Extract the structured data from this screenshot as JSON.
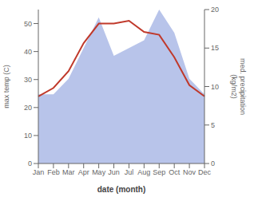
{
  "chart_data": {
    "type": "line",
    "categories": [
      "Jan",
      "Feb",
      "Mar",
      "Apr",
      "May",
      "Jun",
      "Jul",
      "Aug",
      "Sep",
      "Oct",
      "Nov",
      "Dec"
    ],
    "series": [
      {
        "type": "area",
        "axis": "y2",
        "color": "#b0bee8",
        "values": [
          9,
          9,
          11,
          15,
          19,
          14,
          15,
          16,
          20,
          17,
          11,
          9
        ]
      },
      {
        "type": "line",
        "color": "#c0392b",
        "values": [
          24,
          27,
          33,
          43,
          50,
          50,
          51,
          47,
          46,
          38,
          28,
          24
        ]
      }
    ],
    "xlabel": "date (month)",
    "ylabel": "max temp (C)",
    "y2label": "med. precipitation\n(kg/m2)",
    "ylim": [
      0,
      55
    ],
    "yticks": [
      0,
      10,
      20,
      30,
      40,
      50
    ],
    "y2lim": [
      0,
      20
    ],
    "y2ticks": [
      0,
      5,
      10,
      15,
      20
    ],
    "grid": false
  }
}
